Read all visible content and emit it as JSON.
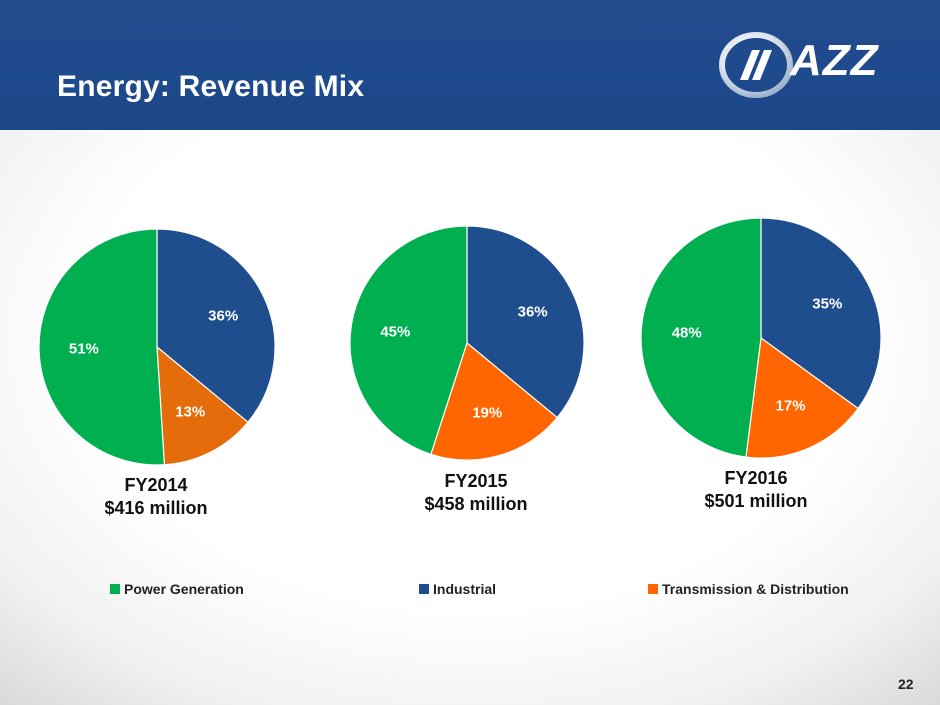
{
  "header": {
    "title": "Energy: Revenue Mix",
    "logo_text": "AZZ"
  },
  "page_number": "22",
  "colors": {
    "header_bg": "#1e4a8e",
    "power_generation": "#00b050",
    "industrial": "#1f4e8f",
    "transmission_distribution": "#ff6600",
    "transmission_distribution_fy2014": "#e46c0a"
  },
  "chart_data": [
    {
      "type": "pie",
      "caption_line1": "FY2014",
      "caption_line2": "$416 million",
      "slices": [
        {
          "name": "Industrial",
          "value": 36,
          "label": "36%"
        },
        {
          "name": "Transmission & Distribution",
          "value": 13,
          "label": "13%"
        },
        {
          "name": "Power Generation",
          "value": 51,
          "label": "51%"
        }
      ]
    },
    {
      "type": "pie",
      "caption_line1": "FY2015",
      "caption_line2": "$458 million",
      "slices": [
        {
          "name": "Industrial",
          "value": 36,
          "label": "36%"
        },
        {
          "name": "Transmission & Distribution",
          "value": 19,
          "label": "19%"
        },
        {
          "name": "Power Generation",
          "value": 45,
          "label": "45%"
        }
      ]
    },
    {
      "type": "pie",
      "caption_line1": "FY2016",
      "caption_line2": "$501 million",
      "slices": [
        {
          "name": "Industrial",
          "value": 35,
          "label": "35%"
        },
        {
          "name": "Transmission & Distribution",
          "value": 17,
          "label": "17%"
        },
        {
          "name": "Power Generation",
          "value": 48,
          "label": "48%"
        }
      ]
    }
  ],
  "legend": [
    {
      "label": "Power Generation",
      "color": "#00b050"
    },
    {
      "label": "Industrial",
      "color": "#1f4e8f"
    },
    {
      "label": "Transmission & Distribution",
      "color": "#ff6600"
    }
  ]
}
